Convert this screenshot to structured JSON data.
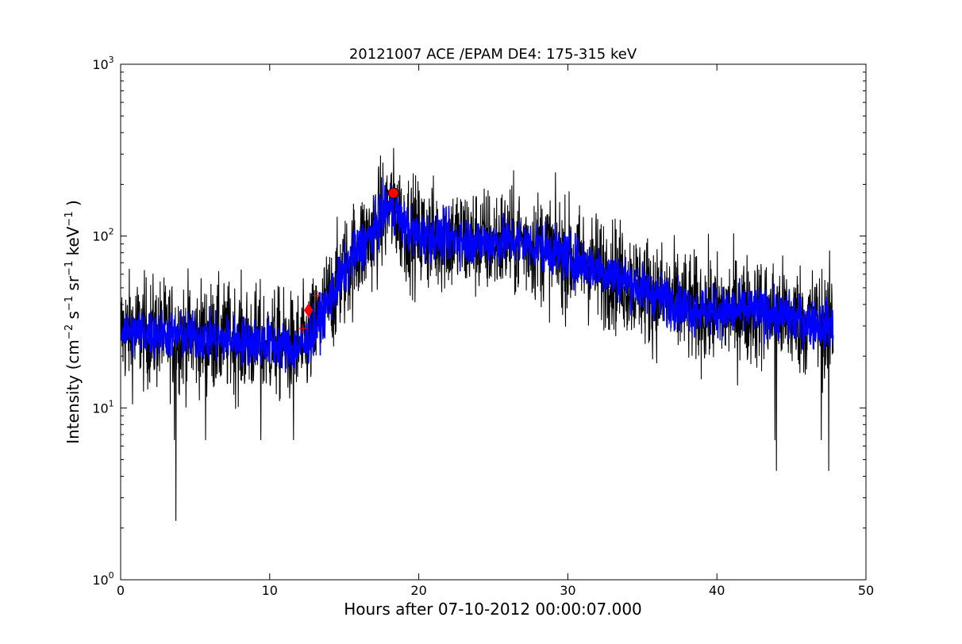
{
  "chart_data": {
    "type": "line",
    "title": "20121007 ACE /EPAM DE4: 175-315 keV",
    "xlabel": "Hours after 07-10-2012 00:00:07.000",
    "ylabel": {
      "prefix": "Intensity (cm",
      "sup1": "−2",
      "mid1": " s",
      "sup2": "−1",
      "mid2": " sr",
      "sup3": "−1",
      "mid3": " keV",
      "sup4": "−1",
      "suffix": " )"
    },
    "xlim": [
      0,
      50
    ],
    "ylim": [
      1,
      1000
    ],
    "yscale": "log",
    "x_ticks": [
      {
        "value": 0,
        "label": "0"
      },
      {
        "value": 10,
        "label": "10"
      },
      {
        "value": 20,
        "label": "20"
      },
      {
        "value": 30,
        "label": "30"
      },
      {
        "value": 40,
        "label": "40"
      },
      {
        "value": 50,
        "label": "50"
      }
    ],
    "y_ticks": [
      {
        "value": 1,
        "base": "10",
        "exp": "0"
      },
      {
        "value": 10,
        "base": "10",
        "exp": "1"
      },
      {
        "value": 100,
        "base": "10",
        "exp": "2"
      },
      {
        "value": 1000,
        "base": "10",
        "exp": "3"
      }
    ],
    "grid": false,
    "series": [
      {
        "color": "#000000",
        "profile_x": [
          0,
          5,
          10,
          11.5,
          12.3,
          13,
          14,
          15,
          16,
          17,
          17.5,
          18,
          18.5,
          19,
          20,
          22,
          24,
          26,
          28,
          30,
          32,
          34,
          36,
          38,
          40,
          42,
          44,
          46,
          47.8
        ],
        "profile_y": [
          28,
          26,
          24,
          22,
          23,
          28,
          42,
          62,
          85,
          105,
          130,
          150,
          140,
          115,
          100,
          98,
          92,
          94,
          88,
          75,
          65,
          55,
          45,
          38,
          36,
          37,
          35,
          32,
          30
        ],
        "spread_decades": 0.16,
        "dips": [
          {
            "x": 3.6,
            "y": 6.5
          },
          {
            "x": 3.7,
            "y": 2.2
          },
          {
            "x": 5.7,
            "y": 6.5
          },
          {
            "x": 9.4,
            "y": 6.5
          },
          {
            "x": 11.6,
            "y": 6.5
          },
          {
            "x": 43.9,
            "y": 6.5
          },
          {
            "x": 44.0,
            "y": 4.3
          },
          {
            "x": 47.0,
            "y": 6.5
          },
          {
            "x": 47.5,
            "y": 4.3
          }
        ]
      },
      {
        "color": "#0000ff",
        "spread_decades": 0.07
      }
    ],
    "markers": [
      {
        "type": "circle",
        "x": 18.3,
        "y": 178,
        "color": "#ff0000"
      },
      {
        "type": "diamond",
        "x": 12.6,
        "y": 37,
        "color": "#ff0000"
      },
      {
        "type": "plus",
        "x": 12.2,
        "y": 29,
        "color": "#ff0000"
      },
      {
        "type": "plus",
        "x": 13.2,
        "y": 45,
        "color": "#ff0000"
      }
    ]
  }
}
